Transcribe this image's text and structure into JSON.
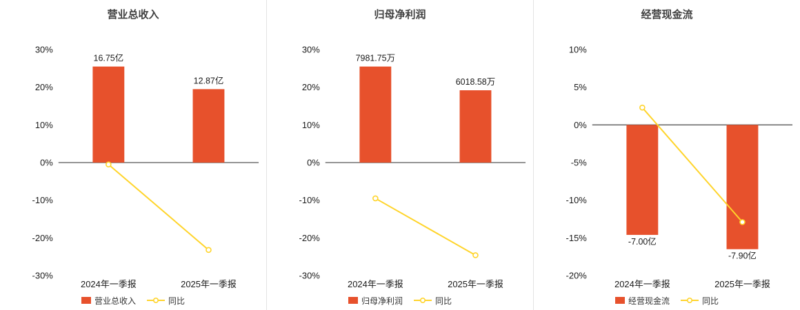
{
  "colors": {
    "bar": "#e7512c",
    "line": "#ffd42a",
    "marker_fill": "#ffffff",
    "axis": "#555555",
    "text": "#1a1a1a",
    "title": "#404040",
    "divider": "#e3e3e3"
  },
  "chart_data": [
    {
      "type": "bar",
      "title": "营业总收入",
      "categories": [
        "2024年一季报",
        "2025年一季报"
      ],
      "ylim": [
        -30,
        30
      ],
      "yticks": [
        30,
        20,
        10,
        0,
        -10,
        -20,
        -30
      ],
      "ytick_suffix": "%",
      "grid": false,
      "legend_position": "bottom",
      "series": [
        {
          "name": "营业总收入",
          "type": "bar",
          "display_values": [
            "16.75亿",
            "12.87亿"
          ],
          "scaled_axis_values": [
            25.5,
            19.5
          ]
        },
        {
          "name": "同比",
          "type": "line",
          "values": [
            -0.5,
            -23.2
          ],
          "unit": "%"
        }
      ]
    },
    {
      "type": "bar",
      "title": "归母净利润",
      "categories": [
        "2024年一季报",
        "2025年一季报"
      ],
      "ylim": [
        -30,
        30
      ],
      "yticks": [
        30,
        20,
        10,
        0,
        -10,
        -20,
        -30
      ],
      "ytick_suffix": "%",
      "grid": false,
      "legend_position": "bottom",
      "series": [
        {
          "name": "归母净利润",
          "type": "bar",
          "display_values": [
            "7981.75万",
            "6018.58万"
          ],
          "scaled_axis_values": [
            25.5,
            19.2
          ]
        },
        {
          "name": "同比",
          "type": "line",
          "values": [
            -9.5,
            -24.6
          ],
          "unit": "%"
        }
      ]
    },
    {
      "type": "bar",
      "title": "经营现金流",
      "categories": [
        "2024年一季报",
        "2025年一季报"
      ],
      "ylim": [
        -20,
        10
      ],
      "yticks": [
        10,
        5,
        0,
        -5,
        -10,
        -15,
        -20
      ],
      "ytick_suffix": "%",
      "grid": false,
      "legend_position": "bottom",
      "series": [
        {
          "name": "经营现金流",
          "type": "bar",
          "display_values": [
            "-7.00亿",
            "-7.90亿"
          ],
          "scaled_axis_values": [
            -14.6,
            -16.5
          ]
        },
        {
          "name": "同比",
          "type": "line",
          "values": [
            2.3,
            -12.9
          ],
          "unit": "%"
        }
      ]
    }
  ]
}
